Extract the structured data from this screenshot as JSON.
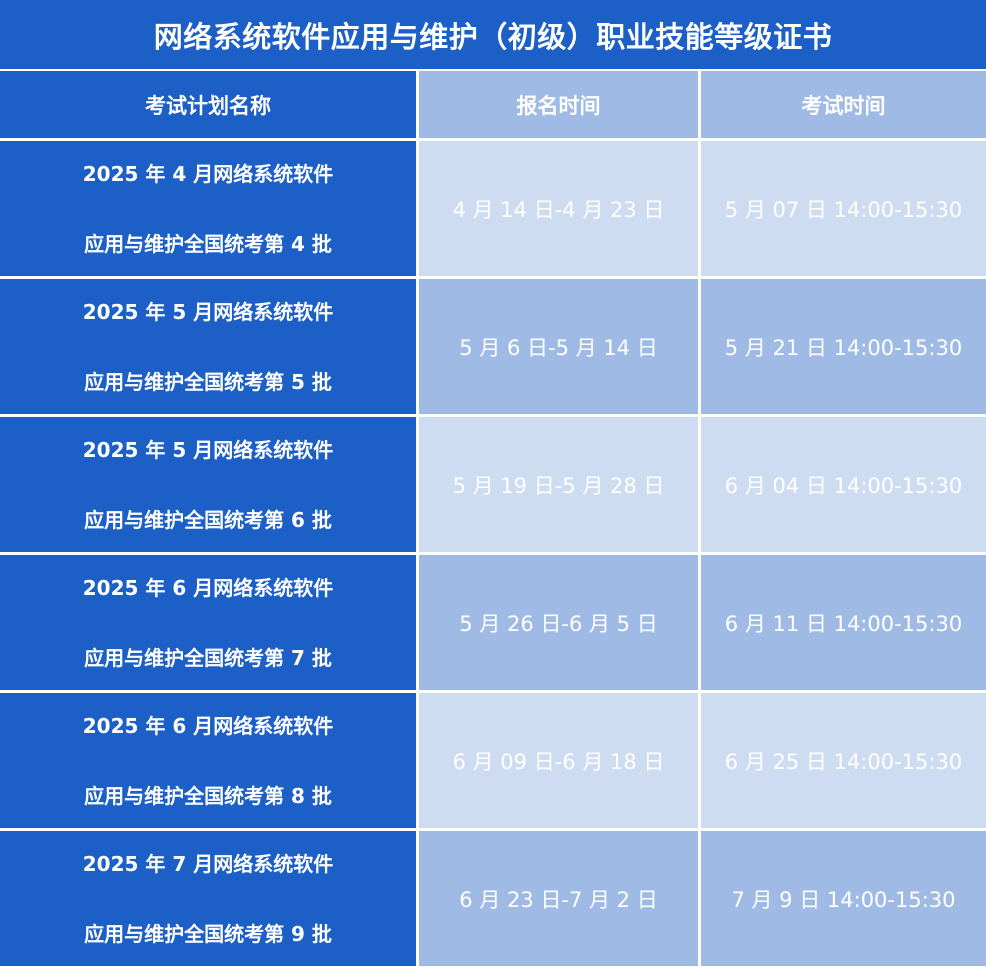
{
  "title": "网络系统软件应用与维护（初级）职业技能等级证书",
  "headers": [
    "考试计划名称",
    "报名时间",
    "考试时间"
  ],
  "rows": [
    {
      "name_line1": "2025 年 4 月网络系统软件",
      "name_line2": "应用与维护全国统考第 4 批",
      "registration": "4 月 14 日-4 月 23 日",
      "exam": "5 月 07 日  14:00-15:30"
    },
    {
      "name_line1": "2025 年 5 月网络系统软件",
      "name_line2": "应用与维护全国统考第 5 批",
      "registration": "5 月 6 日-5 月 14 日",
      "exam": "5 月 21 日  14:00-15:30"
    },
    {
      "name_line1": "2025 年 5 月网络系统软件",
      "name_line2": "应用与维护全国统考第 6 批",
      "registration": "5 月 19 日-5 月 28 日",
      "exam": "6 月 04 日  14:00-15:30"
    },
    {
      "name_line1": "2025 年 6 月网络系统软件",
      "name_line2": "应用与维护全国统考第 7 批",
      "registration": "5 月 26 日-6 月 5 日",
      "exam": "6 月 11 日  14:00-15:30"
    },
    {
      "name_line1": "2025 年 6 月网络系统软件",
      "name_line2": "应用与维护全国统考第 8 批",
      "registration": "6 月 09 日-6 月 18 日",
      "exam": "6 月 25 日  14:00-15:30"
    },
    {
      "name_line1": "2025 年 7 月网络系统软件",
      "name_line2": "应用与维护全国统考第 9 批",
      "registration": "6 月 23 日-7 月 2 日",
      "exam": "7 月 9 日  14:00-15:30"
    }
  ],
  "colors": {
    "primary_blue": "#1c5fc6",
    "light_row": "#cddcf0",
    "mid_row": "#9fbbe5"
  }
}
